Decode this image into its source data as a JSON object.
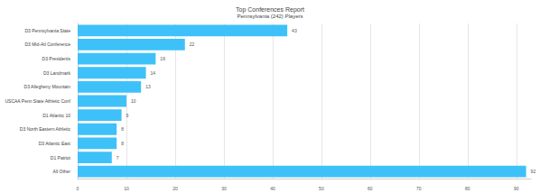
{
  "chart_data": {
    "type": "bar",
    "orientation": "horizontal",
    "title": "Top Conferences Report",
    "subtitle": "Pennsylvania (242) Players",
    "categories": [
      "D3 Pennsylvania State",
      "D3 Mid-Atl Conference",
      "D3 Presidents",
      "D3 Landmark",
      "D3 Allegheny Mountain",
      "USCAA Penn State Athletic Conf",
      "D1 Atlantic 10",
      "D3 North Eastern Athletic",
      "D3 Atlantic East",
      "D1 Patriot",
      "All Other"
    ],
    "values": [
      43,
      22,
      16,
      14,
      13,
      10,
      9,
      8,
      8,
      7,
      92
    ],
    "color": "#3ec1f9",
    "xlim": [
      0,
      93
    ],
    "xticks": [
      0,
      10,
      20,
      30,
      40,
      50,
      60,
      70,
      80,
      90
    ],
    "grid": true,
    "data_labels": true
  }
}
